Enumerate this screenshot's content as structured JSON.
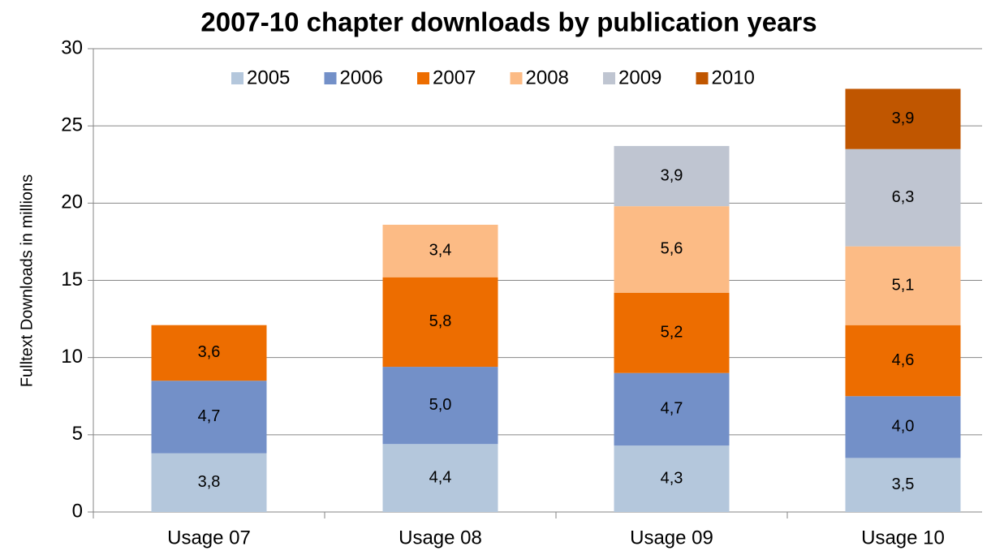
{
  "chart_data": {
    "type": "stacked_bar",
    "title": "2007-10 chapter downloads by publication years",
    "y_label": "Fulltext Downloads in millions",
    "categories": [
      "Usage 07",
      "Usage 08",
      "Usage 09",
      "Usage 10"
    ],
    "series": [
      {
        "name": "2005",
        "color": "#b4c7dc",
        "values": [
          3.8,
          4.4,
          4.3,
          3.5
        ],
        "value_labels": [
          "3,8",
          "4,4",
          "4,3",
          "3,5"
        ]
      },
      {
        "name": "2006",
        "color": "#7390c8",
        "values": [
          4.7,
          5.0,
          4.7,
          4.0
        ],
        "value_labels": [
          "4,7",
          "5,0",
          "4,7",
          "4,0"
        ]
      },
      {
        "name": "2007",
        "color": "#ed6d00",
        "values": [
          3.6,
          5.8,
          5.2,
          4.6
        ],
        "value_labels": [
          "3,6",
          "5,8",
          "5,2",
          "4,6"
        ]
      },
      {
        "name": "2008",
        "color": "#fcbb85",
        "values": [
          null,
          3.4,
          5.6,
          5.1
        ],
        "value_labels": [
          null,
          "3,4",
          "5,6",
          "5,1"
        ]
      },
      {
        "name": "2009",
        "color": "#bfc5d1",
        "values": [
          null,
          null,
          3.9,
          6.3
        ],
        "value_labels": [
          null,
          null,
          "3,9",
          "6,3"
        ]
      },
      {
        "name": "2010",
        "color": "#c05600",
        "values": [
          null,
          null,
          null,
          3.9
        ],
        "value_labels": [
          null,
          null,
          null,
          "3,9"
        ]
      }
    ],
    "ylim": [
      0,
      30
    ],
    "yticks": [
      0,
      5,
      10,
      15,
      20,
      25,
      30
    ],
    "grid": true,
    "legend": "top"
  }
}
